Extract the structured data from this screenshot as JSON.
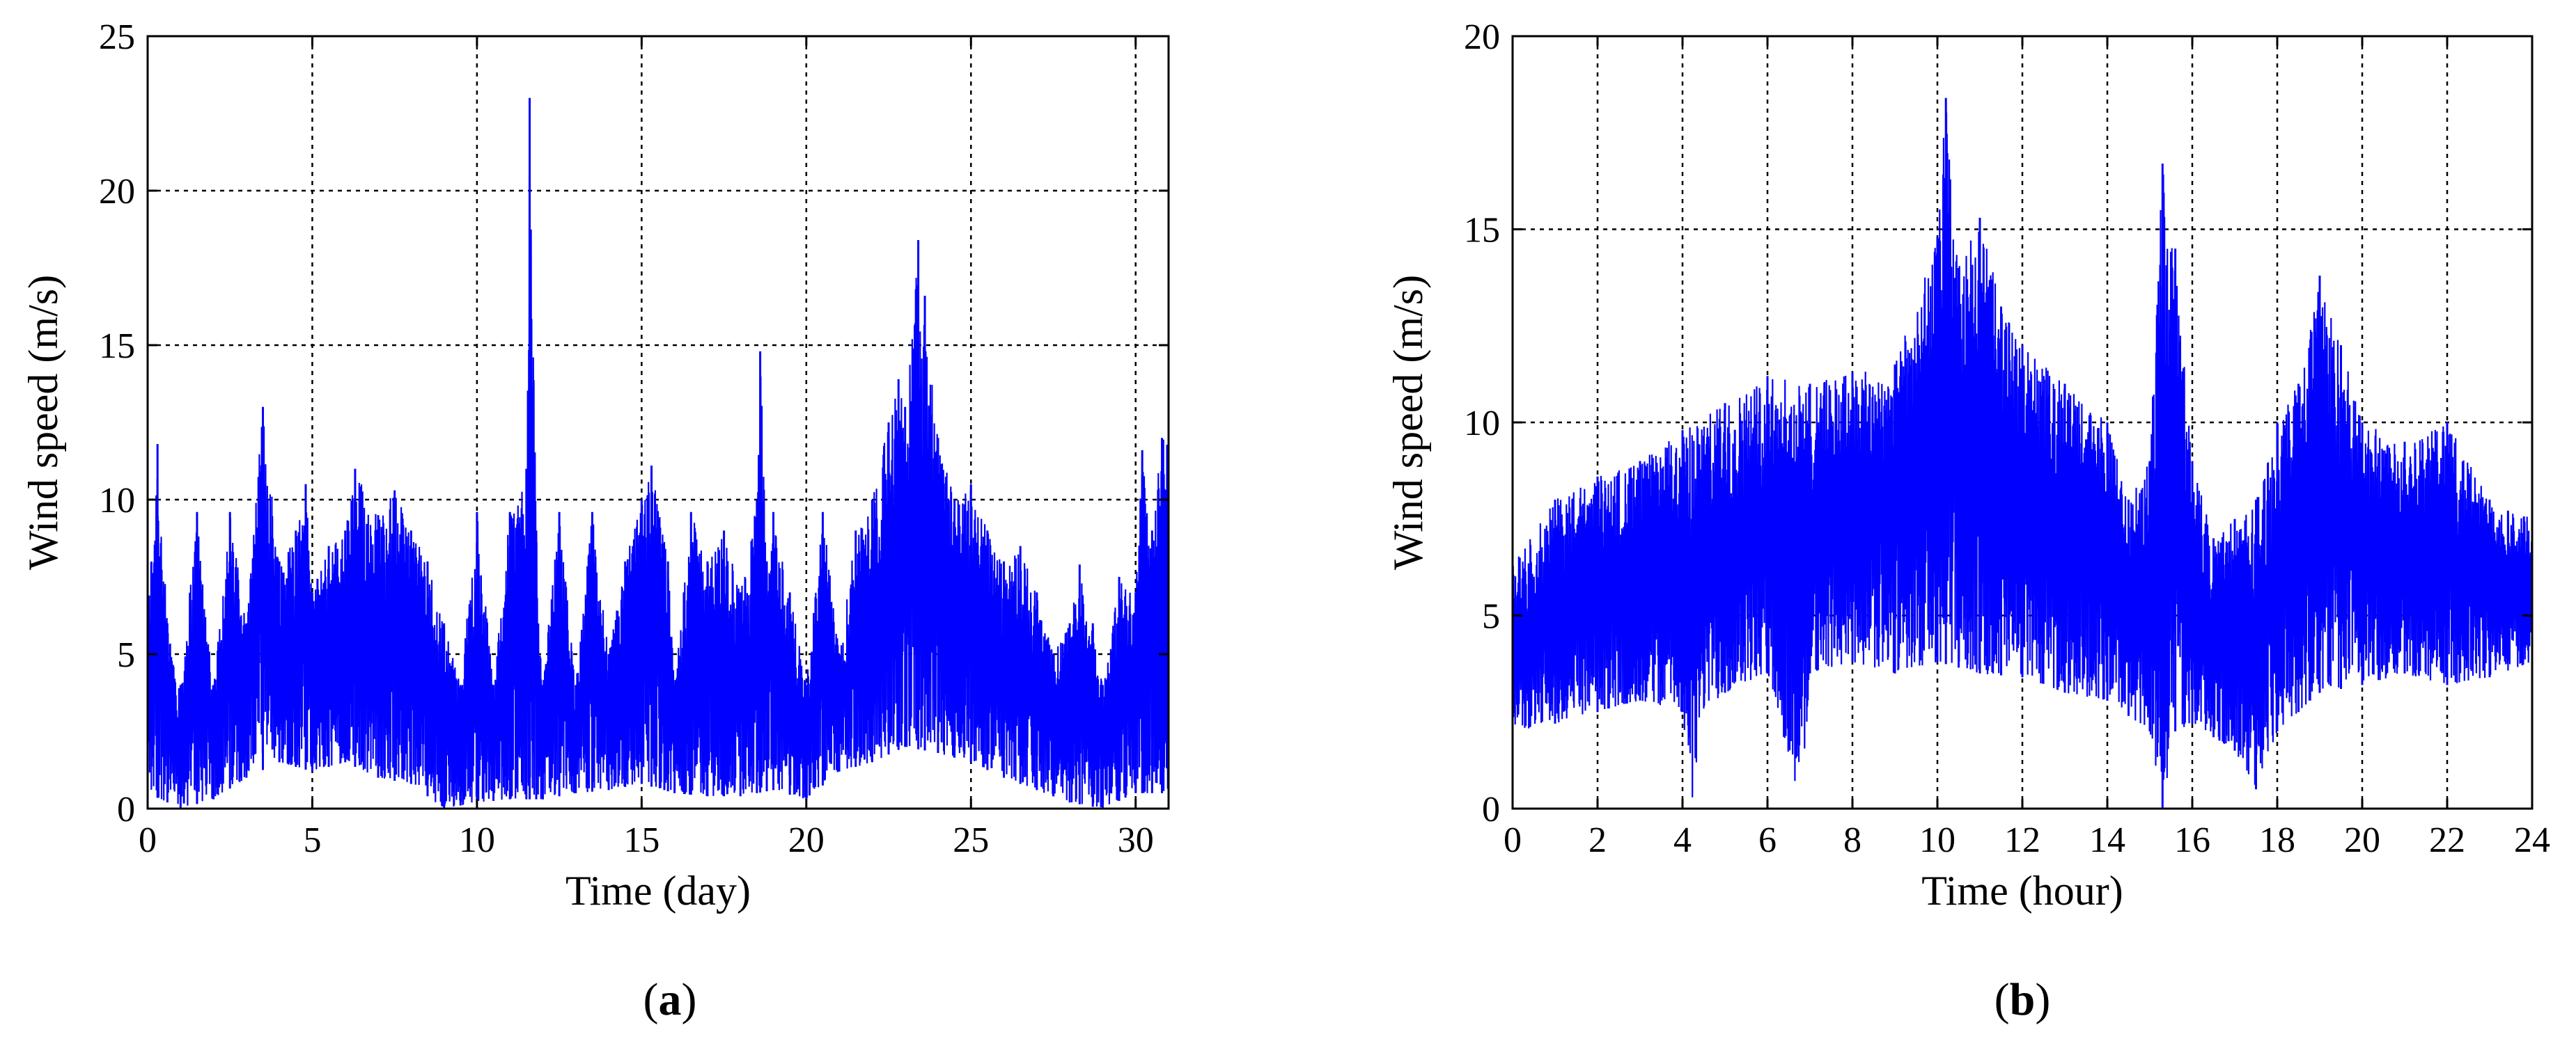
{
  "chart_data": [
    {
      "type": "line",
      "panel_label": "a",
      "xlabel": "Time (day)",
      "ylabel": "Wind speed (m/s)",
      "xlim": [
        0,
        31
      ],
      "ylim": [
        0,
        25
      ],
      "xticks": [
        0,
        5,
        10,
        15,
        20,
        25,
        30
      ],
      "yticks": [
        0,
        5,
        10,
        15,
        20,
        25
      ],
      "grid": true,
      "line_color": "#0000ff",
      "series": [
        {
          "envelope_upper": [
            [
              0,
              6.5
            ],
            [
              0.3,
              11.8
            ],
            [
              0.6,
              6
            ],
            [
              1,
              4
            ],
            [
              1.5,
              9.6
            ],
            [
              2,
              4
            ],
            [
              2.5,
              9.6
            ],
            [
              3,
              6
            ],
            [
              3.5,
              13
            ],
            [
              4,
              8
            ],
            [
              4.5,
              9
            ],
            [
              4.8,
              10.5
            ],
            [
              5,
              7
            ],
            [
              5.5,
              8.5
            ],
            [
              6,
              9
            ],
            [
              6.3,
              11
            ],
            [
              7,
              9.5
            ],
            [
              7.5,
              10.3
            ],
            [
              8,
              9
            ],
            [
              8.5,
              8
            ],
            [
              9,
              6
            ],
            [
              9.5,
              4
            ],
            [
              10,
              9.6
            ],
            [
              10.5,
              4
            ],
            [
              11,
              9.6
            ],
            [
              11.5,
              11
            ],
            [
              11.6,
              23
            ],
            [
              11.8,
              9
            ],
            [
              12,
              4
            ],
            [
              12.5,
              9.6
            ],
            [
              13,
              4
            ],
            [
              13.5,
              9.6
            ],
            [
              14,
              5
            ],
            [
              14.5,
              8
            ],
            [
              15,
              10
            ],
            [
              15.3,
              11.1
            ],
            [
              15.8,
              8
            ],
            [
              16,
              4
            ],
            [
              16.5,
              9.6
            ],
            [
              17,
              8
            ],
            [
              17.5,
              9
            ],
            [
              18,
              7
            ],
            [
              18.5,
              10
            ],
            [
              18.6,
              14.8
            ],
            [
              18.8,
              8
            ],
            [
              19,
              9.6
            ],
            [
              19.5,
              7
            ],
            [
              20,
              4
            ],
            [
              20.5,
              9.6
            ],
            [
              21,
              5
            ],
            [
              21.5,
              9
            ],
            [
              22,
              10
            ],
            [
              22.5,
              12.5
            ],
            [
              22.8,
              13.9
            ],
            [
              23,
              13
            ],
            [
              23.4,
              18.4
            ],
            [
              23.6,
              16.6
            ],
            [
              24,
              12
            ],
            [
              24.5,
              10
            ],
            [
              25,
              10.5
            ],
            [
              25.5,
              9
            ],
            [
              26,
              8
            ],
            [
              26.5,
              8.5
            ],
            [
              27,
              7
            ],
            [
              27.5,
              5
            ],
            [
              28,
              6
            ],
            [
              28.3,
              7.9
            ],
            [
              28.7,
              6
            ],
            [
              29,
              4
            ],
            [
              29.5,
              7.5
            ],
            [
              30,
              7
            ],
            [
              30.2,
              11.6
            ],
            [
              30.5,
              9
            ],
            [
              30.8,
              12
            ],
            [
              31,
              11.8
            ]
          ],
          "envelope_lower": [
            [
              0,
              0.5
            ],
            [
              1,
              0
            ],
            [
              2,
              0.3
            ],
            [
              3,
              1
            ],
            [
              4,
              1.5
            ],
            [
              5,
              1.2
            ],
            [
              6,
              1.5
            ],
            [
              7,
              1
            ],
            [
              8,
              0.8
            ],
            [
              9,
              0
            ],
            [
              10,
              0.2
            ],
            [
              11,
              0.3
            ],
            [
              12,
              0.3
            ],
            [
              13,
              0.5
            ],
            [
              14,
              0.6
            ],
            [
              15,
              0.8
            ],
            [
              16,
              0.5
            ],
            [
              17,
              0.4
            ],
            [
              18,
              0.4
            ],
            [
              19,
              0.6
            ],
            [
              20,
              0.3
            ],
            [
              21,
              1.2
            ],
            [
              22,
              1.5
            ],
            [
              23,
              2
            ],
            [
              24,
              1.8
            ],
            [
              25,
              1.5
            ],
            [
              26,
              1
            ],
            [
              27,
              0.6
            ],
            [
              28,
              0.2
            ],
            [
              29,
              0
            ],
            [
              30,
              0.5
            ],
            [
              31,
              0.5
            ]
          ]
        }
      ]
    },
    {
      "type": "line",
      "panel_label": "b",
      "xlabel": "Time (hour)",
      "ylabel": "Wind speed (m/s)",
      "xlim": [
        0,
        24
      ],
      "ylim": [
        0,
        20
      ],
      "xticks": [
        0,
        2,
        4,
        6,
        8,
        10,
        12,
        14,
        16,
        18,
        20,
        22,
        24
      ],
      "yticks": [
        0,
        5,
        10,
        15,
        20
      ],
      "grid": true,
      "line_color": "#0000ff",
      "series": [
        {
          "envelope_upper": [
            [
              0,
              6.3
            ],
            [
              1,
              8
            ],
            [
              2,
              8.6
            ],
            [
              3,
              9
            ],
            [
              4,
              9.8
            ],
            [
              5,
              10.5
            ],
            [
              6,
              11.2
            ],
            [
              7,
              11
            ],
            [
              8,
              11.3
            ],
            [
              9,
              11.5
            ],
            [
              10,
              14.8
            ],
            [
              10.2,
              18.4
            ],
            [
              10.5,
              14
            ],
            [
              11,
              15.3
            ],
            [
              11.5,
              13
            ],
            [
              12,
              12
            ],
            [
              13,
              11
            ],
            [
              14,
              10
            ],
            [
              14.5,
              8
            ],
            [
              15,
              9
            ],
            [
              15.3,
              16.7
            ],
            [
              15.6,
              14.5
            ],
            [
              16,
              9
            ],
            [
              16.5,
              7
            ],
            [
              17,
              7.5
            ],
            [
              17.5,
              8
            ],
            [
              18,
              10
            ],
            [
              18.5,
              11
            ],
            [
              19,
              13.8
            ],
            [
              19.5,
              12
            ],
            [
              20,
              10
            ],
            [
              21,
              9.5
            ],
            [
              22,
              10
            ],
            [
              23,
              8
            ],
            [
              24,
              7.5
            ]
          ],
          "envelope_lower": [
            [
              0,
              2
            ],
            [
              1,
              2.2
            ],
            [
              2,
              2.5
            ],
            [
              3,
              2.8
            ],
            [
              4,
              2.5
            ],
            [
              4.2,
              0
            ],
            [
              4.5,
              2.5
            ],
            [
              5,
              3
            ],
            [
              6,
              3.5
            ],
            [
              6.8,
              0
            ],
            [
              7,
              3.5
            ],
            [
              8,
              3.8
            ],
            [
              9,
              3.5
            ],
            [
              10,
              3.8
            ],
            [
              11,
              3.5
            ],
            [
              12,
              3.4
            ],
            [
              13,
              3
            ],
            [
              14,
              2.8
            ],
            [
              15,
              2
            ],
            [
              15.3,
              0
            ],
            [
              15.6,
              2
            ],
            [
              16,
              2.2
            ],
            [
              17,
              1.5
            ],
            [
              17.5,
              0.5
            ],
            [
              18,
              2
            ],
            [
              19,
              3
            ],
            [
              20,
              3.2
            ],
            [
              21,
              3.5
            ],
            [
              22,
              3.2
            ],
            [
              23,
              3.4
            ],
            [
              24,
              3.8
            ]
          ]
        }
      ]
    }
  ]
}
